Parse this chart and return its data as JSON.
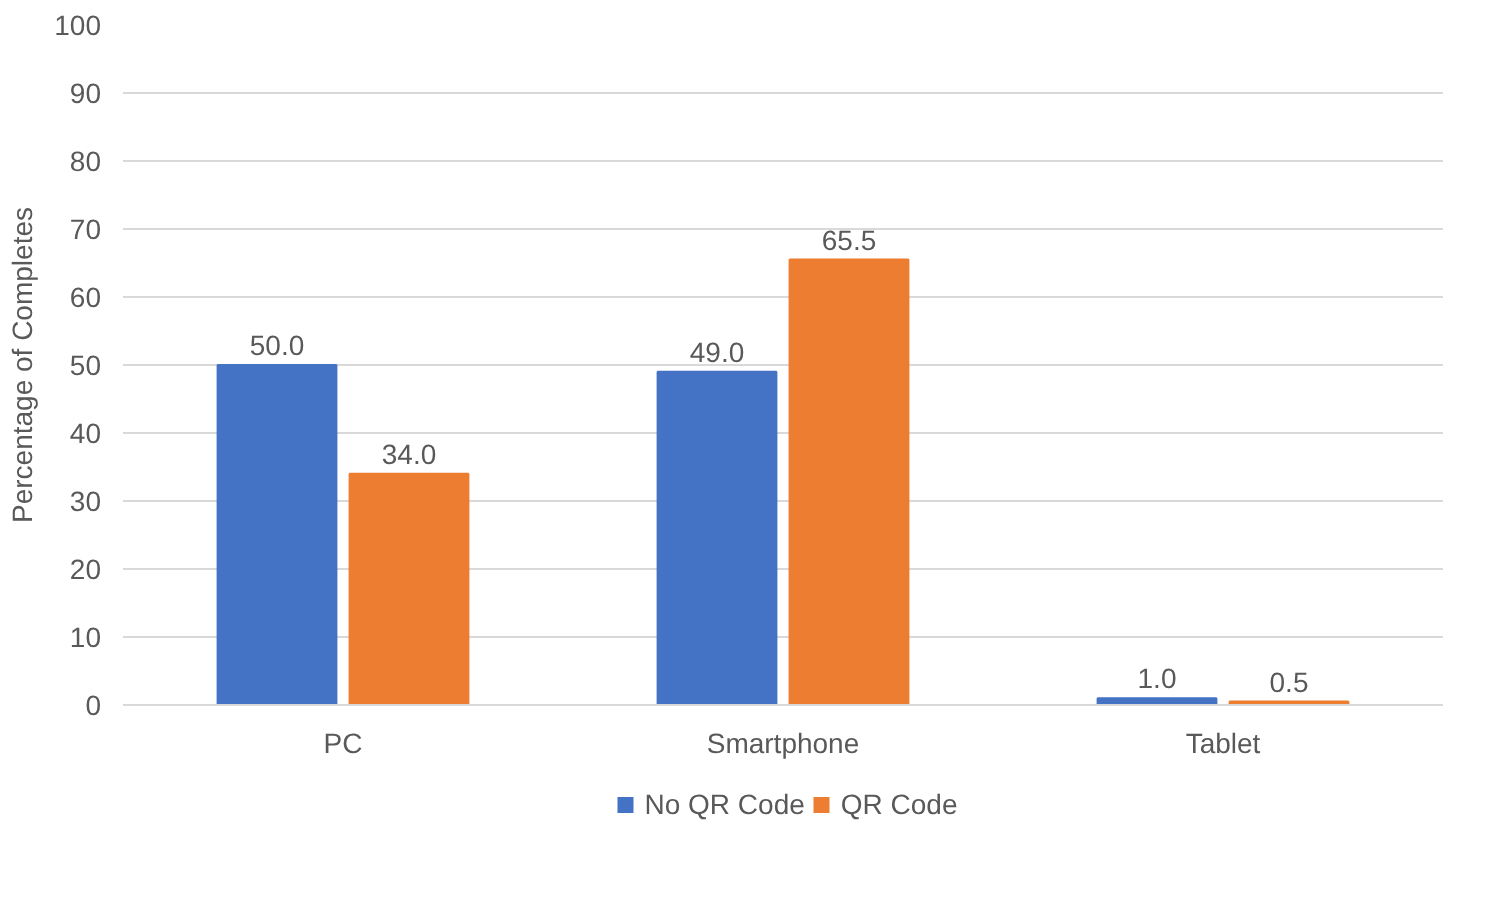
{
  "chart_data": {
    "type": "bar",
    "ylabel": "Percentage of Completes",
    "categories": [
      "PC",
      "Smartphone",
      "Tablet"
    ],
    "series": [
      {
        "name": "No QR Code",
        "color": "#4472c4",
        "values": [
          50.0,
          49.0,
          1.0
        ],
        "value_labels": [
          "50.0",
          "49.0",
          "1.0"
        ]
      },
      {
        "name": "QR Code",
        "color": "#ed7d31",
        "values": [
          34.0,
          65.5,
          0.5
        ],
        "value_labels": [
          "34.0",
          "65.5",
          "0.5"
        ]
      }
    ],
    "ylim": [
      0,
      100
    ],
    "yticks": [
      0,
      10,
      20,
      30,
      40,
      50,
      60,
      70,
      80,
      90,
      100
    ],
    "grid": "y",
    "legend": "bottom"
  }
}
